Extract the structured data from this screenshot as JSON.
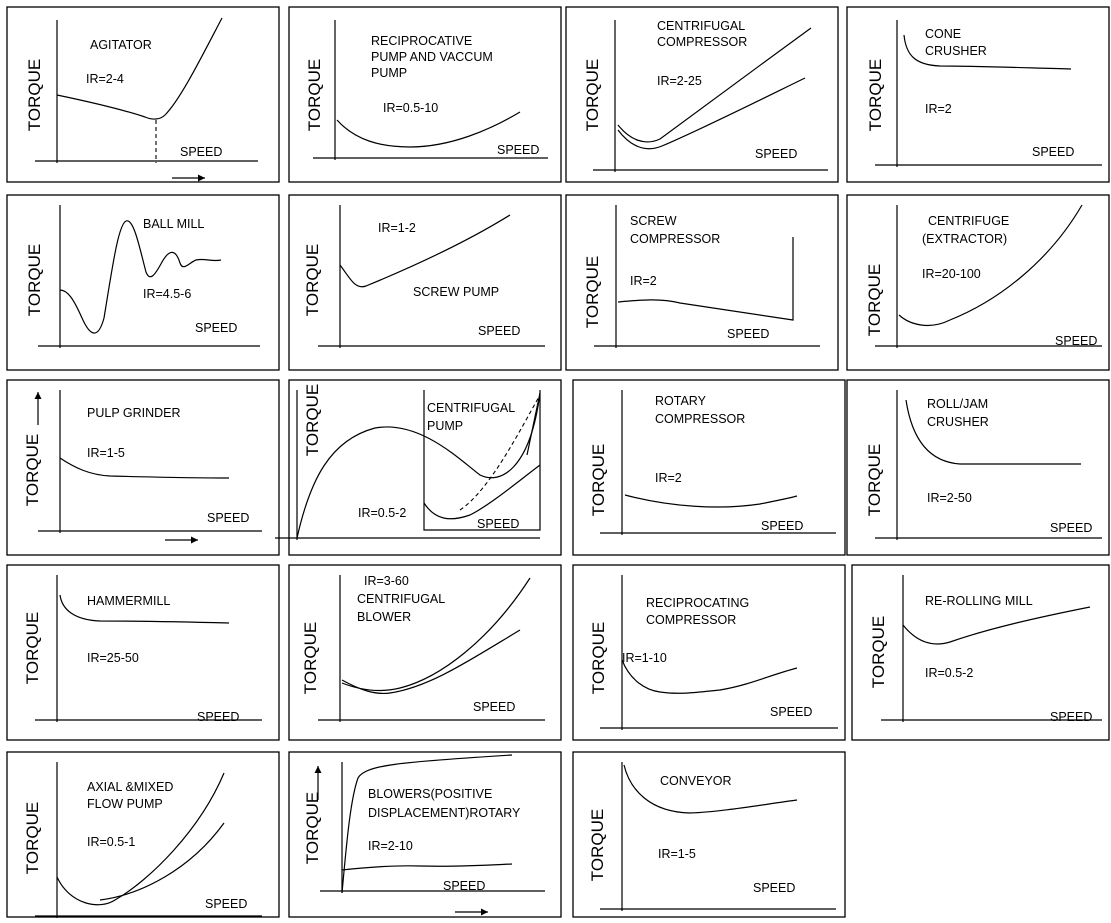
{
  "axis": {
    "y_label": "TORQUE",
    "x_label": "SPEED"
  },
  "panels": [
    {
      "id": "agitator",
      "lines": [
        "AGITATOR"
      ],
      "ir": "IR=2-4"
    },
    {
      "id": "reciprocative-pump",
      "lines": [
        "RECIPROCATIVE",
        "PUMP AND VACCUM",
        "PUMP"
      ],
      "ir": "IR=0.5-10"
    },
    {
      "id": "centrifugal-compressor",
      "lines": [
        "CENTRIFUGAL",
        "COMPRESSOR"
      ],
      "ir": "IR=2-25"
    },
    {
      "id": "cone-crusher",
      "lines": [
        "CONE",
        "CRUSHER"
      ],
      "ir": "IR=2"
    },
    {
      "id": "ball-mill",
      "lines": [
        "BALL MILL"
      ],
      "ir": "IR=4.5-6"
    },
    {
      "id": "screw-pump",
      "lines": [
        "SCREW PUMP"
      ],
      "ir": "IR=1-2"
    },
    {
      "id": "screw-compressor",
      "lines": [
        "SCREW",
        "COMPRESSOR"
      ],
      "ir": "IR=2"
    },
    {
      "id": "centrifuge",
      "lines": [
        "CENTRIFUGE",
        "(EXTRACTOR)"
      ],
      "ir": "IR=20-100"
    },
    {
      "id": "pulp-grinder",
      "lines": [
        "PULP GRINDER"
      ],
      "ir": "IR=1-5"
    },
    {
      "id": "centrifugal-pump",
      "lines": [
        "CENTRIFUGAL",
        "PUMP"
      ],
      "ir": "IR=0.5-2"
    },
    {
      "id": "rotary-compressor",
      "lines": [
        "ROTARY",
        "COMPRESSOR"
      ],
      "ir": "IR=2"
    },
    {
      "id": "roll-jam-crusher",
      "lines": [
        "ROLL/JAM",
        "CRUSHER"
      ],
      "ir": "IR=2-50"
    },
    {
      "id": "hammermill",
      "lines": [
        "HAMMERMILL"
      ],
      "ir": "IR=25-50"
    },
    {
      "id": "centrifugal-blower",
      "lines": [
        "CENTRIFUGAL",
        "BLOWER"
      ],
      "ir": "IR=3-60"
    },
    {
      "id": "reciprocating-compressor",
      "lines": [
        "RECIPROCATING",
        "COMPRESSOR"
      ],
      "ir": "IR=1-10"
    },
    {
      "id": "re-rolling-mill",
      "lines": [
        "RE-ROLLING MILL"
      ],
      "ir": "IR=0.5-2"
    },
    {
      "id": "axial-mixed-flow-pump",
      "lines": [
        "AXIAL &MIXED",
        "FLOW PUMP"
      ],
      "ir": "IR=0.5-1"
    },
    {
      "id": "blowers-positive-displacement",
      "lines": [
        "BLOWERS(POSITIVE",
        "DISPLACEMENT)ROTARY"
      ],
      "ir": "IR=2-10"
    },
    {
      "id": "conveyor",
      "lines": [
        "CONVEYOR"
      ],
      "ir": "IR=1-5"
    }
  ]
}
